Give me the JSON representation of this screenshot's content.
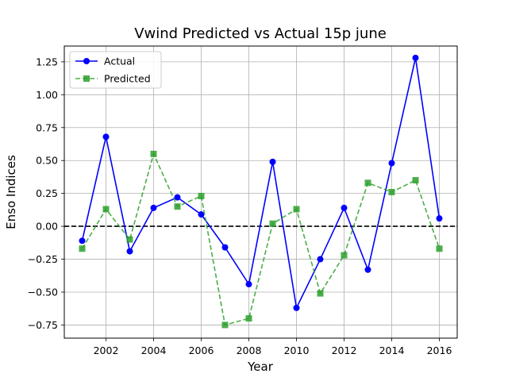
{
  "chart_data": {
    "type": "line",
    "title": "Vwind Predicted vs Actual 15p june",
    "xlabel": "Year",
    "ylabel": "Enso Indices",
    "x": [
      2001,
      2002,
      2003,
      2004,
      2005,
      2006,
      2007,
      2008,
      2009,
      2010,
      2011,
      2012,
      2013,
      2014,
      2015,
      2016
    ],
    "xlim": [
      2000.25,
      2016.75
    ],
    "ylim": [
      -0.85,
      1.37
    ],
    "xticks": [
      2002,
      2004,
      2006,
      2008,
      2010,
      2012,
      2014,
      2016
    ],
    "yticks": [
      -0.75,
      -0.5,
      -0.25,
      0.0,
      0.25,
      0.5,
      0.75,
      1.0,
      1.25
    ],
    "ytick_labels": [
      "−0.75",
      "−0.50",
      "−0.25",
      "0.00",
      "0.25",
      "0.50",
      "0.75",
      "1.00",
      "1.25"
    ],
    "grid": true,
    "legend_position": "upper-left",
    "reference_line": {
      "y": 0,
      "style": "dashed",
      "color": "#000000"
    },
    "series": [
      {
        "name": "Actual",
        "color": "#0000ff",
        "marker": "circle",
        "linestyle": "solid",
        "values": [
          -0.11,
          0.68,
          -0.19,
          0.14,
          0.22,
          0.09,
          -0.16,
          -0.44,
          0.49,
          -0.62,
          -0.25,
          0.14,
          -0.33,
          0.48,
          1.28,
          0.06
        ]
      },
      {
        "name": "Predicted",
        "color": "#2ca02c",
        "marker": "square",
        "linestyle": "dashed",
        "values": [
          -0.17,
          0.13,
          -0.1,
          0.55,
          0.15,
          0.23,
          -0.75,
          -0.7,
          0.02,
          0.13,
          -0.51,
          -0.22,
          0.33,
          0.26,
          0.35,
          -0.17
        ]
      }
    ]
  }
}
